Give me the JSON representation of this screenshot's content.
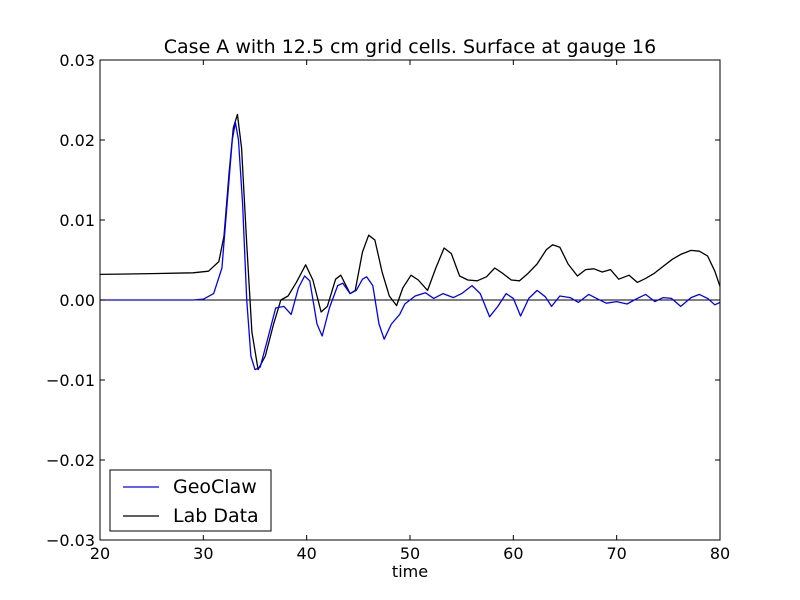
{
  "chart_data": {
    "type": "line",
    "title": "Case A with 12.5 cm grid cells.  Surface at gauge 16",
    "xlabel": "time",
    "ylabel": "",
    "xlim": [
      20,
      80
    ],
    "ylim": [
      -0.03,
      0.03
    ],
    "x_ticks": [
      "20",
      "30",
      "40",
      "50",
      "60",
      "70",
      "80"
    ],
    "y_ticks": [
      "0.03",
      "0.02",
      "0.01",
      "0.00",
      "−0.01",
      "−0.02",
      "−0.03"
    ],
    "grid": false,
    "legend_position": "lower-left",
    "reference_line_y": 0,
    "series": [
      {
        "name": "GeoClaw",
        "color": "#0000ff",
        "points": [
          [
            20,
            0
          ],
          [
            29,
            0
          ],
          [
            30,
            0.0001
          ],
          [
            31,
            0.0008
          ],
          [
            31.8,
            0.004
          ],
          [
            32.3,
            0.012
          ],
          [
            32.8,
            0.02
          ],
          [
            33.1,
            0.0222
          ],
          [
            33.4,
            0.02
          ],
          [
            33.8,
            0.012
          ],
          [
            34.2,
            0.0
          ],
          [
            34.6,
            -0.007
          ],
          [
            35,
            -0.0087
          ],
          [
            35.5,
            -0.0084
          ],
          [
            36.2,
            -0.005
          ],
          [
            37,
            -0.001
          ],
          [
            37.8,
            -0.0008
          ],
          [
            38.5,
            -0.0018
          ],
          [
            39.2,
            0.0015
          ],
          [
            39.8,
            0.003
          ],
          [
            40.3,
            0.0024
          ],
          [
            41,
            -0.003
          ],
          [
            41.5,
            -0.0045
          ],
          [
            42.2,
            -0.001
          ],
          [
            43,
            0.0018
          ],
          [
            43.5,
            0.0021
          ],
          [
            44.2,
            0.0008
          ],
          [
            44.8,
            0.0012
          ],
          [
            45.4,
            0.0026
          ],
          [
            45.8,
            0.0029
          ],
          [
            46.4,
            0.0018
          ],
          [
            47,
            -0.003
          ],
          [
            47.5,
            -0.0049
          ],
          [
            48.2,
            -0.003
          ],
          [
            49,
            -0.0018
          ],
          [
            49.5,
            -0.0005
          ],
          [
            50.5,
            0.0005
          ],
          [
            51.5,
            0.0009
          ],
          [
            52.3,
            0.0002
          ],
          [
            53.2,
            0.0008
          ],
          [
            54.2,
            0.0003
          ],
          [
            55,
            0.0008
          ],
          [
            56,
            0.0018
          ],
          [
            56.8,
            0.0008
          ],
          [
            57.7,
            -0.0021
          ],
          [
            58.5,
            -0.0008
          ],
          [
            59.3,
            0.0008
          ],
          [
            60,
            0.0002
          ],
          [
            60.7,
            -0.002
          ],
          [
            61.5,
            0.0002
          ],
          [
            62.3,
            0.0012
          ],
          [
            63.1,
            0.0004
          ],
          [
            63.7,
            -0.0008
          ],
          [
            64.5,
            0.0005
          ],
          [
            65.5,
            0.0003
          ],
          [
            66.3,
            -0.0003
          ],
          [
            67.3,
            0.0007
          ],
          [
            68.2,
            0.0001
          ],
          [
            69,
            -0.0004
          ],
          [
            70,
            -0.0002
          ],
          [
            71,
            -0.0005
          ],
          [
            72,
            0.0002
          ],
          [
            72.8,
            0.0007
          ],
          [
            73.7,
            -0.0002
          ],
          [
            74.5,
            0.0003
          ],
          [
            75.3,
            0.0002
          ],
          [
            76.2,
            -0.0008
          ],
          [
            77.2,
            0.0003
          ],
          [
            78,
            0.0007
          ],
          [
            78.8,
            0.0002
          ],
          [
            79.5,
            -0.0006
          ],
          [
            80,
            -0.0003
          ]
        ]
      },
      {
        "name": "Lab Data",
        "color": "#000000",
        "points": [
          [
            20,
            0.0032
          ],
          [
            25,
            0.0033
          ],
          [
            29,
            0.0034
          ],
          [
            30.5,
            0.0036
          ],
          [
            31.5,
            0.0048
          ],
          [
            32,
            0.008
          ],
          [
            32.5,
            0.016
          ],
          [
            32.9,
            0.0215
          ],
          [
            33.3,
            0.0232
          ],
          [
            33.7,
            0.019
          ],
          [
            34.2,
            0.007
          ],
          [
            34.7,
            -0.004
          ],
          [
            35.3,
            -0.0087
          ],
          [
            36,
            -0.007
          ],
          [
            36.8,
            -0.003
          ],
          [
            37.5,
            0.0
          ],
          [
            38.2,
            0.0005
          ],
          [
            39,
            0.0022
          ],
          [
            39.9,
            0.0044
          ],
          [
            40.6,
            0.0025
          ],
          [
            41.4,
            -0.0015
          ],
          [
            42,
            -0.0008
          ],
          [
            42.8,
            0.0026
          ],
          [
            43.3,
            0.0031
          ],
          [
            44.2,
            0.0008
          ],
          [
            44.7,
            0.0012
          ],
          [
            45.4,
            0.006
          ],
          [
            46,
            0.0081
          ],
          [
            46.6,
            0.0075
          ],
          [
            47.3,
            0.0035
          ],
          [
            48,
            0.0005
          ],
          [
            48.7,
            -0.0007
          ],
          [
            49.3,
            0.0015
          ],
          [
            50.1,
            0.0031
          ],
          [
            50.8,
            0.0025
          ],
          [
            51.7,
            0.0012
          ],
          [
            52.5,
            0.004
          ],
          [
            53.3,
            0.0065
          ],
          [
            54,
            0.0058
          ],
          [
            54.8,
            0.003
          ],
          [
            55.6,
            0.0025
          ],
          [
            56.5,
            0.0024
          ],
          [
            57.4,
            0.0029
          ],
          [
            58.2,
            0.004
          ],
          [
            59,
            0.0033
          ],
          [
            59.8,
            0.0025
          ],
          [
            60.6,
            0.0024
          ],
          [
            61.4,
            0.0033
          ],
          [
            62.3,
            0.0045
          ],
          [
            63.2,
            0.0063
          ],
          [
            63.8,
            0.0069
          ],
          [
            64.5,
            0.0066
          ],
          [
            65.3,
            0.0045
          ],
          [
            66.2,
            0.003
          ],
          [
            67,
            0.0038
          ],
          [
            67.8,
            0.0039
          ],
          [
            68.6,
            0.0035
          ],
          [
            69.4,
            0.0038
          ],
          [
            70.2,
            0.0026
          ],
          [
            71.2,
            0.0031
          ],
          [
            72,
            0.0022
          ],
          [
            72.8,
            0.0027
          ],
          [
            73.6,
            0.0033
          ],
          [
            74.5,
            0.0042
          ],
          [
            75.4,
            0.0051
          ],
          [
            76.2,
            0.0057
          ],
          [
            77.2,
            0.0062
          ],
          [
            78,
            0.0061
          ],
          [
            78.8,
            0.0055
          ],
          [
            79.5,
            0.0036
          ],
          [
            80,
            0.0017
          ]
        ]
      }
    ]
  }
}
